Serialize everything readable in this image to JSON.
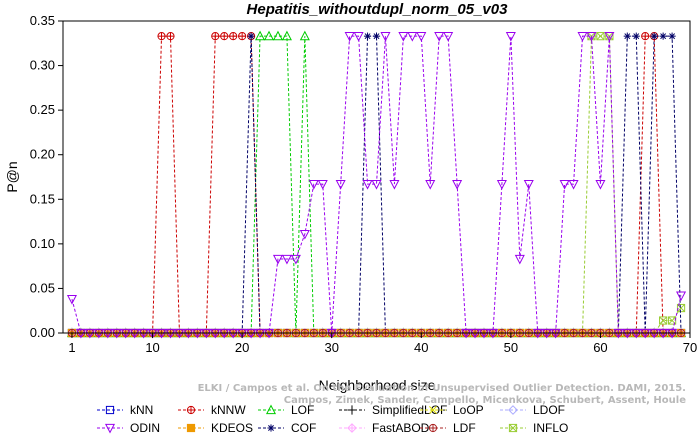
{
  "chart_data": {
    "type": "line",
    "title": "Hepatitis_withoutdupl_norm_05_v03",
    "xlabel": "Neighborhood size",
    "ylabel": "P@n",
    "xlim": [
      0,
      70
    ],
    "ylim": [
      0,
      0.35
    ],
    "xticks": [
      1,
      10,
      20,
      30,
      40,
      50,
      60,
      70
    ],
    "yticks": [
      0.0,
      0.05,
      0.1,
      0.15,
      0.2,
      0.25,
      0.3,
      0.35
    ],
    "ytick_labels": [
      "0.00",
      "0.05",
      "0.10",
      "0.15",
      "0.20",
      "0.25",
      "0.30",
      "0.35"
    ],
    "x": [
      1,
      2,
      3,
      4,
      5,
      6,
      7,
      8,
      9,
      10,
      11,
      12,
      13,
      14,
      15,
      16,
      17,
      18,
      19,
      20,
      21,
      22,
      23,
      24,
      25,
      26,
      27,
      28,
      29,
      30,
      31,
      32,
      33,
      34,
      35,
      36,
      37,
      38,
      39,
      40,
      41,
      42,
      43,
      44,
      45,
      46,
      47,
      48,
      49,
      50,
      51,
      52,
      53,
      54,
      55,
      56,
      57,
      58,
      59,
      60,
      61,
      62,
      63,
      64,
      65,
      66,
      67,
      68,
      69
    ],
    "line_style": "dashed",
    "grid": false,
    "legend_position": "bottom",
    "watermark": "ELKI / Campos et al. On the Evaluation of Unsupervised Outlier Detection. DAMI, 2015.\nCampos, Zimek, Sander, Campello, Micenkova, Schubert, Assent, Houle",
    "series": [
      {
        "name": "kNN",
        "color": "#0000cc",
        "marker": "square",
        "legend_row": 0,
        "legend_col": 0,
        "values": [
          0,
          0,
          0,
          0,
          0,
          0,
          0,
          0,
          0,
          0,
          0,
          0,
          0,
          0,
          0,
          0,
          0,
          0,
          0,
          0,
          0,
          0,
          0,
          0,
          0,
          0,
          0,
          0,
          0,
          0,
          0,
          0,
          0,
          0,
          0,
          0,
          0,
          0,
          0,
          0,
          0,
          0,
          0,
          0,
          0,
          0,
          0,
          0,
          0,
          0,
          0,
          0,
          0,
          0,
          0,
          0,
          0,
          0,
          0,
          0,
          0,
          0,
          0,
          0,
          0,
          0,
          0,
          0,
          0
        ]
      },
      {
        "name": "kNNW",
        "color": "#cc0000",
        "marker": "circle-plus",
        "legend_row": 0,
        "legend_col": 1,
        "values": [
          0,
          0,
          0,
          0,
          0,
          0,
          0,
          0,
          0,
          0,
          0.333,
          0.333,
          0,
          0,
          0,
          0,
          0.333,
          0.333,
          0.333,
          0.333,
          0.333,
          0,
          0,
          0,
          0,
          0,
          0,
          0,
          0,
          0,
          0,
          0,
          0,
          0,
          0,
          0,
          0,
          0,
          0,
          0,
          0,
          0,
          0,
          0,
          0,
          0,
          0,
          0,
          0,
          0,
          0,
          0,
          0,
          0,
          0,
          0,
          0,
          0,
          0,
          0,
          0,
          0,
          0,
          0,
          0.333,
          0.333,
          0,
          0,
          0
        ]
      },
      {
        "name": "LOF",
        "color": "#00cc00",
        "marker": "triangle-up",
        "legend_row": 0,
        "legend_col": 2,
        "values": [
          0,
          0,
          0,
          0,
          0,
          0,
          0,
          0,
          0,
          0,
          0,
          0,
          0,
          0,
          0,
          0,
          0,
          0,
          0,
          0,
          0,
          0.333,
          0.333,
          0.333,
          0.333,
          0,
          0.333,
          0,
          0,
          0,
          0,
          0,
          0,
          0,
          0,
          0,
          0,
          0,
          0,
          0,
          0,
          0,
          0,
          0,
          0,
          0,
          0,
          0,
          0,
          0,
          0,
          0,
          0,
          0,
          0,
          0,
          0,
          0,
          0,
          0,
          0,
          0,
          0,
          0,
          0,
          0,
          0,
          0,
          0
        ]
      },
      {
        "name": "SimplifiedLOF",
        "color": "#000000",
        "marker": "plus",
        "legend_row": 0,
        "legend_col": 3,
        "values": [
          0,
          0,
          0,
          0,
          0,
          0,
          0,
          0,
          0,
          0,
          0,
          0,
          0,
          0,
          0,
          0,
          0,
          0,
          0,
          0,
          0,
          0,
          0,
          0,
          0,
          0,
          0,
          0,
          0,
          0,
          0,
          0,
          0,
          0,
          0,
          0,
          0,
          0,
          0,
          0,
          0,
          0,
          0,
          0,
          0,
          0,
          0,
          0,
          0,
          0,
          0,
          0,
          0,
          0,
          0,
          0,
          0,
          0,
          0,
          0,
          0,
          0,
          0,
          0,
          0,
          0,
          0,
          0,
          0
        ]
      },
      {
        "name": "LoOP",
        "color": "#dddd00",
        "marker": "cross",
        "legend_row": 0,
        "legend_col": 4,
        "values": [
          0,
          0,
          0,
          0,
          0,
          0,
          0,
          0,
          0,
          0,
          0,
          0,
          0,
          0,
          0,
          0,
          0,
          0,
          0,
          0,
          0,
          0,
          0,
          0,
          0,
          0,
          0,
          0,
          0,
          0,
          0,
          0,
          0,
          0,
          0,
          0,
          0,
          0,
          0,
          0,
          0,
          0,
          0,
          0,
          0,
          0,
          0,
          0,
          0,
          0,
          0,
          0,
          0,
          0,
          0,
          0,
          0,
          0,
          0,
          0,
          0,
          0,
          0,
          0,
          0,
          0,
          0,
          0,
          0
        ]
      },
      {
        "name": "LDOF",
        "color": "#aaaaff",
        "marker": "diamond",
        "legend_row": 0,
        "legend_col": 5,
        "values": [
          0,
          0,
          0,
          0,
          0,
          0,
          0,
          0,
          0,
          0,
          0,
          0,
          0,
          0,
          0,
          0,
          0,
          0,
          0,
          0,
          0,
          0,
          0,
          0,
          0,
          0,
          0,
          0,
          0,
          0,
          0,
          0,
          0,
          0,
          0,
          0,
          0,
          0,
          0,
          0,
          0,
          0,
          0,
          0,
          0,
          0,
          0,
          0,
          0,
          0,
          0,
          0,
          0,
          0,
          0,
          0,
          0,
          0,
          0,
          0,
          0,
          0,
          0,
          0,
          0,
          0,
          0,
          0,
          0
        ]
      },
      {
        "name": "INFLO",
        "color": "#99cc33",
        "marker": "square-x",
        "legend_row": 1,
        "legend_col": 5,
        "values": [
          0,
          0,
          0,
          0,
          0,
          0,
          0,
          0,
          0,
          0,
          0,
          0,
          0,
          0,
          0,
          0,
          0,
          0,
          0,
          0,
          0,
          0,
          0,
          0,
          0,
          0,
          0,
          0,
          0,
          0,
          0,
          0,
          0,
          0,
          0,
          0,
          0,
          0,
          0,
          0,
          0,
          0,
          0,
          0,
          0,
          0,
          0,
          0,
          0,
          0,
          0,
          0,
          0,
          0,
          0,
          0,
          0,
          0,
          0.333,
          0.333,
          0.333,
          0,
          0,
          0,
          0,
          0,
          0.014,
          0.014,
          0.028
        ]
      },
      {
        "name": "COF",
        "color": "#000066",
        "marker": "asterisk",
        "legend_row": 1,
        "legend_col": 2,
        "values": [
          0,
          0,
          0,
          0,
          0,
          0,
          0,
          0,
          0,
          0,
          0,
          0,
          0,
          0,
          0,
          0,
          0,
          0,
          0,
          0,
          0.333,
          0,
          0,
          0,
          0,
          0,
          0,
          0,
          0,
          0,
          0,
          0,
          0,
          0.333,
          0.333,
          0,
          0,
          0,
          0,
          0,
          0,
          0,
          0,
          0,
          0,
          0,
          0,
          0,
          0,
          0,
          0,
          0,
          0,
          0,
          0,
          0,
          0,
          0,
          0,
          0,
          0,
          0,
          0.333,
          0.333,
          0,
          0.333,
          0.333,
          0.333,
          0
        ]
      },
      {
        "name": "KDEOS",
        "color": "#ee9900",
        "marker": "square-filled",
        "legend_row": 1,
        "legend_col": 1,
        "values": [
          0,
          0,
          0,
          0,
          0,
          0,
          0,
          0,
          0,
          0,
          0,
          0,
          0,
          0,
          0,
          0,
          0,
          0,
          0,
          0,
          0,
          0,
          0,
          0,
          0,
          0,
          0,
          0,
          0,
          0,
          0,
          0,
          0,
          0,
          0,
          0,
          0,
          0,
          0,
          0,
          0,
          0,
          0,
          0,
          0,
          0,
          0,
          0,
          0,
          0,
          0,
          0,
          0,
          0,
          0,
          0,
          0,
          0,
          0,
          0,
          0,
          0,
          0,
          0,
          0,
          0,
          0,
          0,
          0
        ]
      },
      {
        "name": "FastABOD",
        "color": "#ffaaff",
        "marker": "diamond-plus",
        "legend_row": 1,
        "legend_col": 3,
        "values": [
          0,
          0,
          0,
          0,
          0,
          0,
          0,
          0,
          0,
          0,
          0,
          0,
          0,
          0,
          0,
          0,
          0,
          0,
          0,
          0,
          0,
          0,
          0,
          0,
          0,
          0,
          0,
          0,
          0,
          0,
          0,
          0,
          0,
          0,
          0,
          0,
          0,
          0,
          0,
          0,
          0,
          0,
          0,
          0,
          0,
          0,
          0,
          0,
          0,
          0,
          0,
          0,
          0,
          0,
          0,
          0,
          0,
          0,
          0,
          0,
          0,
          0,
          0,
          0,
          0,
          0,
          0,
          0,
          0
        ]
      },
      {
        "name": "LDF",
        "color": "#aa2222",
        "marker": "circle-plus",
        "legend_row": 1,
        "legend_col": 4,
        "values": [
          0,
          0,
          0,
          0,
          0,
          0,
          0,
          0,
          0,
          0,
          0,
          0,
          0,
          0,
          0,
          0,
          0,
          0,
          0,
          0,
          0,
          0,
          0,
          0,
          0,
          0,
          0,
          0,
          0,
          0,
          0,
          0,
          0,
          0,
          0,
          0,
          0,
          0,
          0,
          0,
          0,
          0,
          0,
          0,
          0,
          0,
          0,
          0,
          0,
          0,
          0,
          0,
          0,
          0,
          0,
          0,
          0,
          0,
          0,
          0,
          0,
          0,
          0,
          0,
          0,
          0,
          0,
          0,
          0
        ]
      },
      {
        "name": "ODIN",
        "color": "#9900ee",
        "marker": "triangle-down",
        "legend_row": 1,
        "legend_col": 0,
        "values": [
          0.038,
          0,
          0,
          0,
          0,
          0,
          0,
          0,
          0,
          0,
          0,
          0,
          0,
          0,
          0,
          0,
          0,
          0,
          0,
          0,
          0,
          0,
          0,
          0.083,
          0.083,
          0.083,
          0.111,
          0.167,
          0.167,
          0,
          0.167,
          0.333,
          0.333,
          0.167,
          0.167,
          0.333,
          0.167,
          0.333,
          0.333,
          0.333,
          0.167,
          0.333,
          0.333,
          0.167,
          0,
          0,
          0,
          0,
          0.167,
          0.333,
          0.083,
          0.167,
          0,
          0,
          0,
          0.167,
          0.167,
          0.333,
          0.333,
          0.167,
          0.333,
          0,
          0,
          0,
          0,
          0,
          0,
          0,
          0.042
        ]
      }
    ]
  }
}
